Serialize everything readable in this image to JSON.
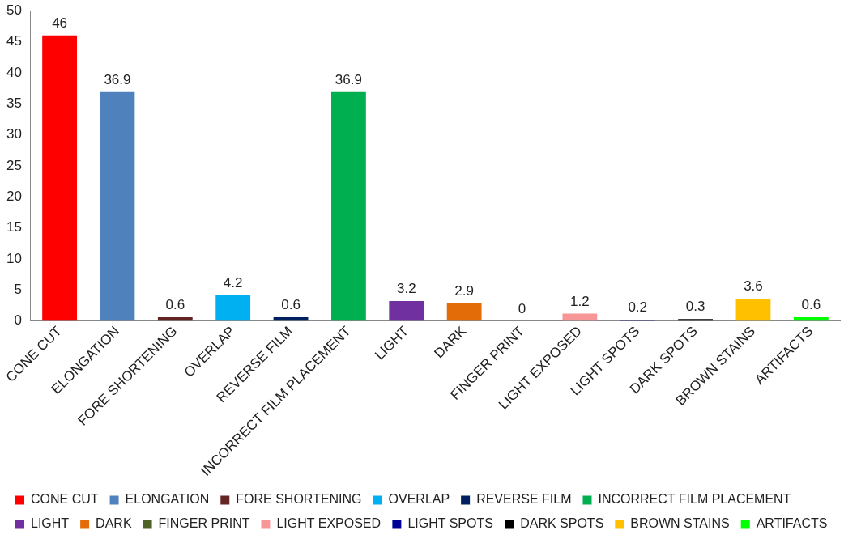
{
  "chart_data": {
    "type": "bar",
    "categories": [
      "CONE CUT",
      "ELONGATION",
      "FORE SHORTENING",
      "OVERLAP",
      "REVERSE FILM",
      "INCORRECT FILM PLACEMENT",
      "LIGHT",
      "DARK",
      "FINGER PRINT",
      "LIGHT EXPOSED",
      "LIGHT SPOTS",
      "DARK SPOTS",
      "BROWN STAINS",
      "ARTIFACTS"
    ],
    "series": [
      {
        "name": "CONE CUT",
        "color": "#ff0000",
        "values": [
          46,
          null,
          null,
          null,
          null,
          null,
          null,
          null,
          null,
          null,
          null,
          null,
          null,
          null
        ]
      },
      {
        "name": "ELONGATION",
        "color": "#4f81bd",
        "values": [
          null,
          36.9,
          null,
          null,
          null,
          null,
          null,
          null,
          null,
          null,
          null,
          null,
          null,
          null
        ]
      },
      {
        "name": "FORE SHORTENING",
        "color": "#632523",
        "values": [
          null,
          null,
          0.6,
          null,
          null,
          null,
          null,
          null,
          null,
          null,
          null,
          null,
          null,
          null
        ]
      },
      {
        "name": "OVERLAP",
        "color": "#00b0f0",
        "values": [
          null,
          null,
          null,
          4.2,
          null,
          null,
          null,
          null,
          null,
          null,
          null,
          null,
          null,
          null
        ]
      },
      {
        "name": "REVERSE FILM",
        "color": "#002060",
        "values": [
          null,
          null,
          null,
          null,
          0.6,
          null,
          null,
          null,
          null,
          null,
          null,
          null,
          null,
          null
        ]
      },
      {
        "name": "INCORRECT FILM PLACEMENT",
        "color": "#00b050",
        "values": [
          null,
          null,
          null,
          null,
          null,
          36.9,
          null,
          null,
          null,
          null,
          null,
          null,
          null,
          null
        ]
      },
      {
        "name": "LIGHT",
        "color": "#7030a0",
        "values": [
          null,
          null,
          null,
          null,
          null,
          null,
          3.2,
          null,
          null,
          null,
          null,
          null,
          null,
          null
        ]
      },
      {
        "name": "DARK",
        "color": "#e36c09",
        "values": [
          null,
          null,
          null,
          null,
          null,
          null,
          null,
          2.9,
          null,
          null,
          null,
          null,
          null,
          null
        ]
      },
      {
        "name": "FINGER PRINT",
        "color": "#4f6228",
        "values": [
          null,
          null,
          null,
          null,
          null,
          null,
          null,
          null,
          0,
          null,
          null,
          null,
          null,
          null
        ]
      },
      {
        "name": "LIGHT EXPOSED",
        "color": "#f79696",
        "values": [
          null,
          null,
          null,
          null,
          null,
          null,
          null,
          null,
          null,
          1.2,
          null,
          null,
          null,
          null
        ]
      },
      {
        "name": "LIGHT SPOTS",
        "color": "#000099",
        "values": [
          null,
          null,
          null,
          null,
          null,
          null,
          null,
          null,
          null,
          null,
          0.2,
          null,
          null,
          null
        ]
      },
      {
        "name": "DARK SPOTS",
        "color": "#000000",
        "values": [
          null,
          null,
          null,
          null,
          null,
          null,
          null,
          null,
          null,
          null,
          null,
          0.3,
          null,
          null
        ]
      },
      {
        "name": "BROWN STAINS",
        "color": "#ffc000",
        "values": [
          null,
          null,
          null,
          null,
          null,
          null,
          null,
          null,
          null,
          null,
          null,
          null,
          3.6,
          null
        ]
      },
      {
        "name": "ARTIFACTS",
        "color": "#00ff00",
        "values": [
          null,
          null,
          null,
          null,
          null,
          null,
          null,
          null,
          null,
          null,
          null,
          null,
          null,
          0.6
        ]
      }
    ],
    "ylim": [
      0,
      50
    ],
    "yticks": [
      0,
      5,
      10,
      15,
      20,
      25,
      30,
      35,
      40,
      45,
      50
    ],
    "grid": false,
    "data_labels": true,
    "legend": "bottom"
  }
}
